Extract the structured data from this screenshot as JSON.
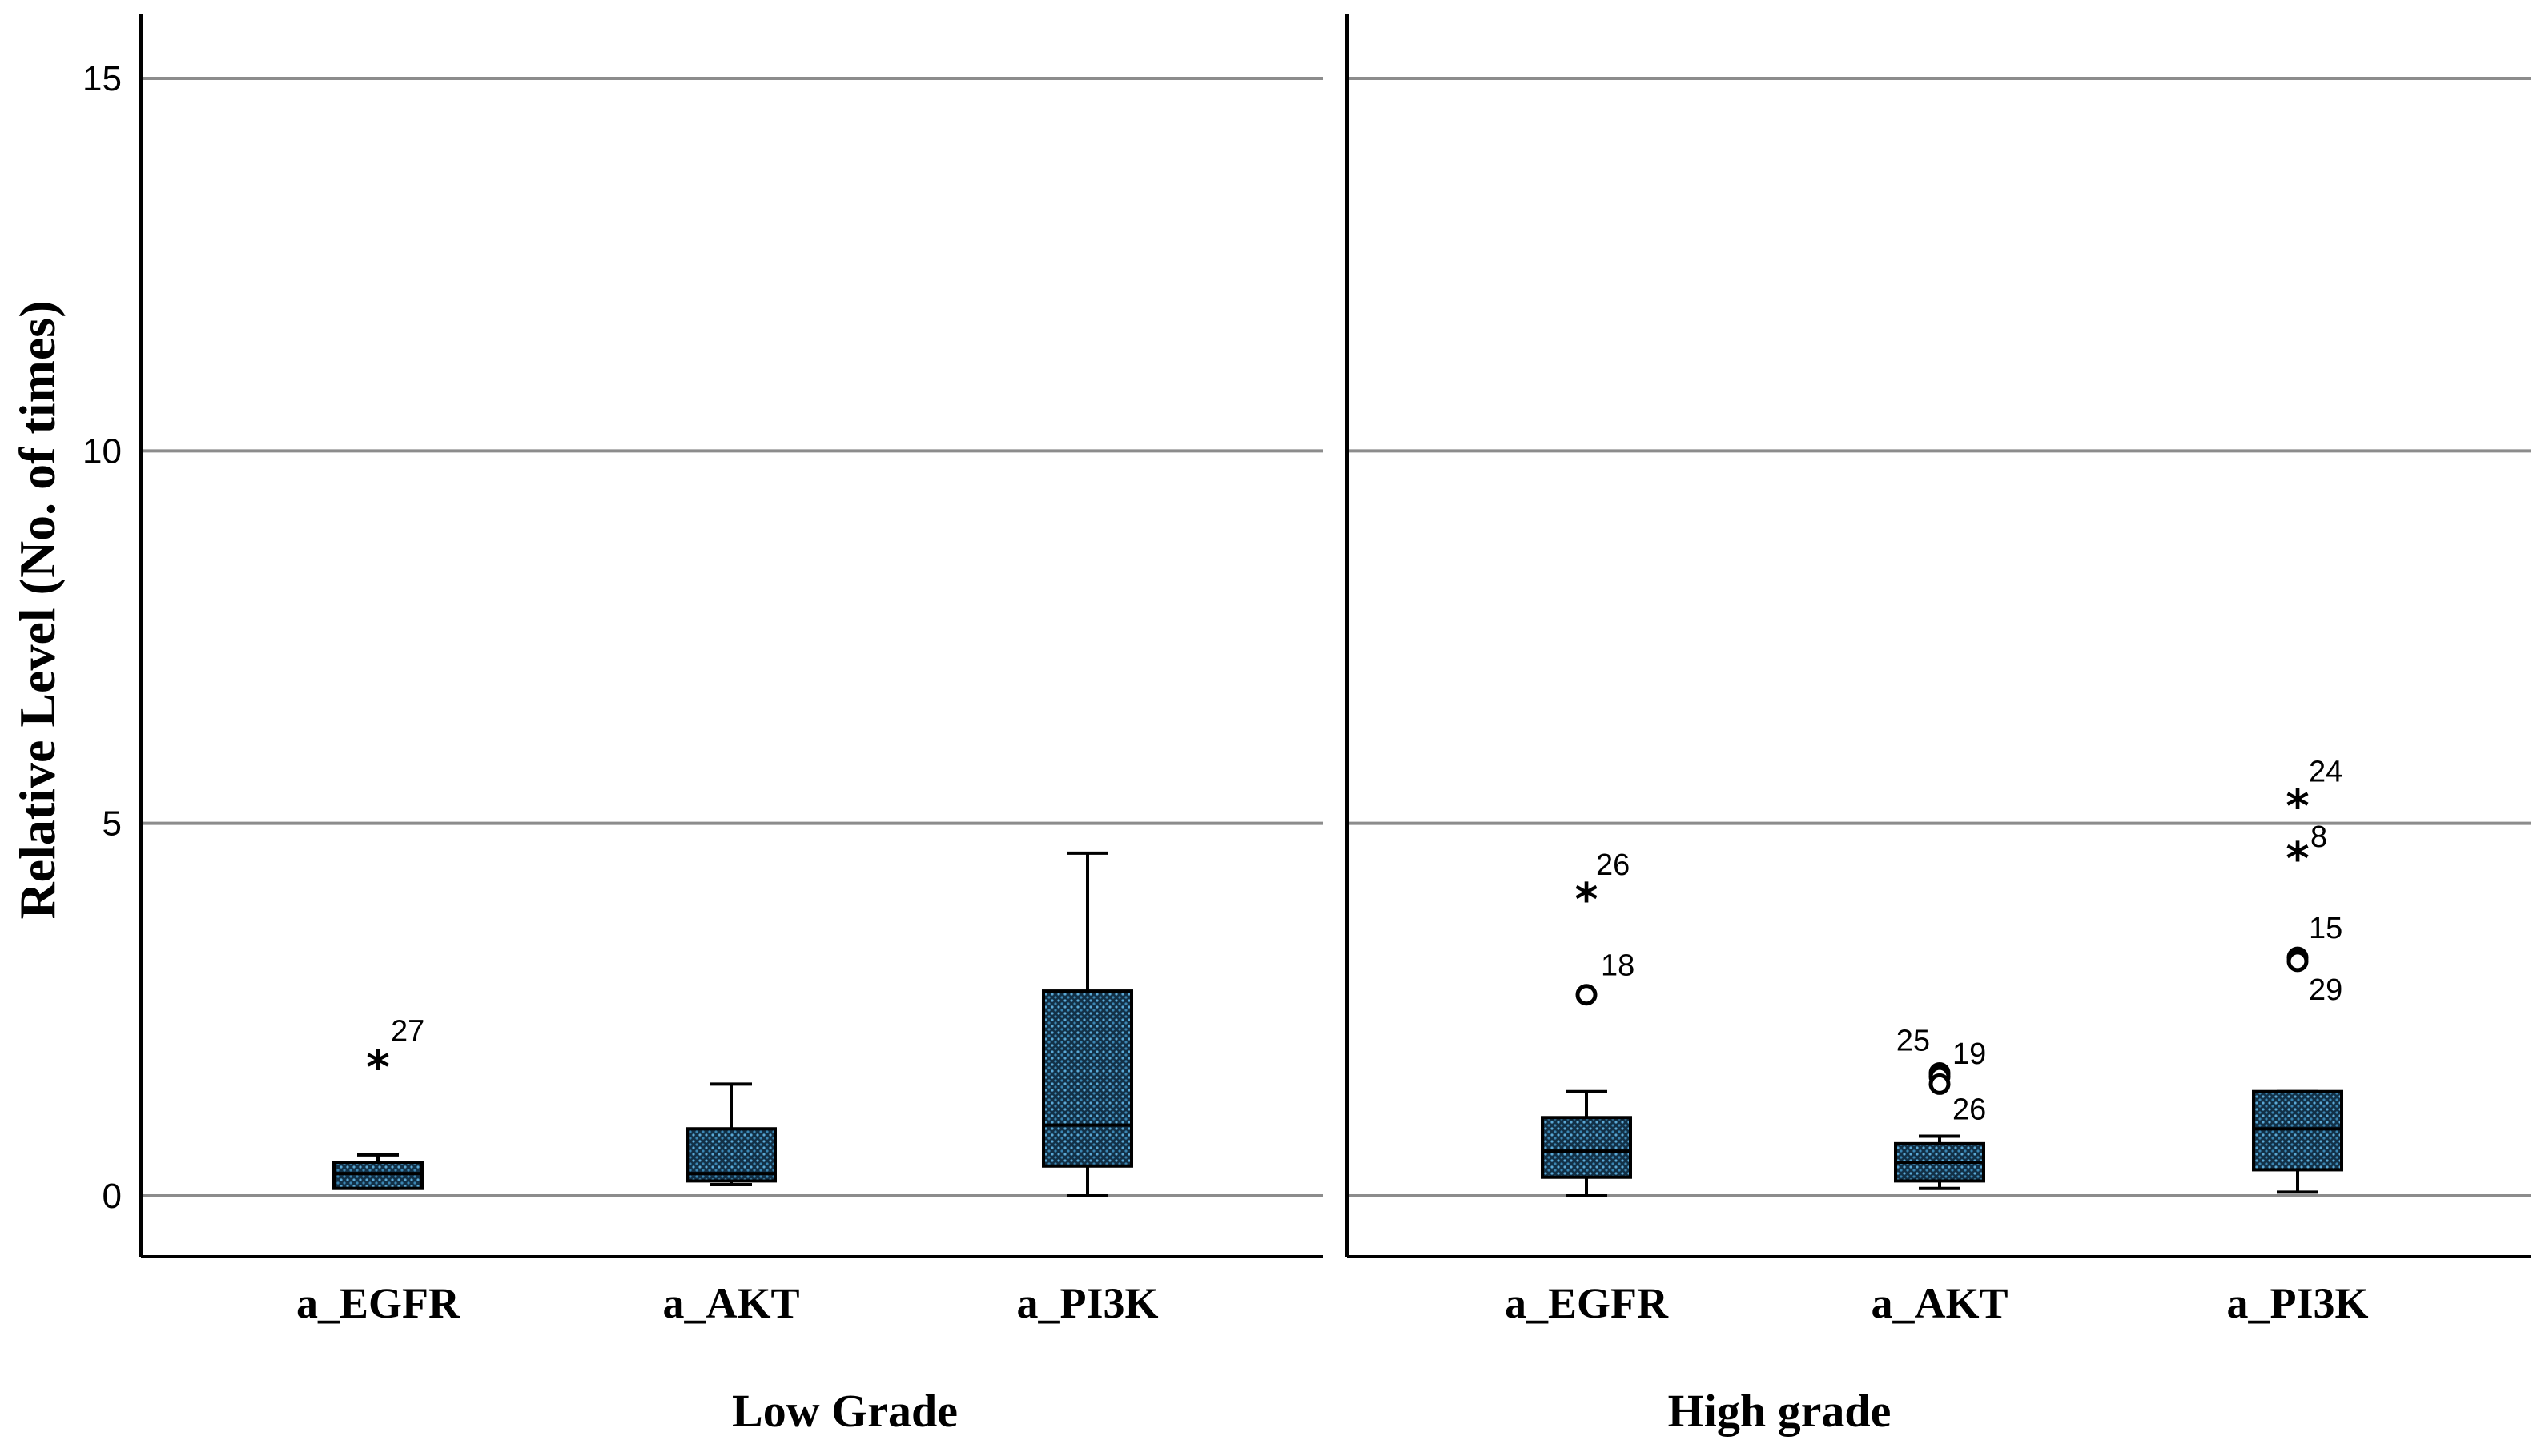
{
  "chart_data": {
    "type": "boxplot",
    "ylabel": "Relative Level  (No. of times)",
    "ylim": [
      -0.8,
      15.8
    ],
    "yticks": [
      0,
      5,
      10,
      15
    ],
    "ytick_labels": [
      "0",
      "5",
      "10",
      "15"
    ],
    "grid": true,
    "box_color": "#2f6f8f",
    "panels": [
      {
        "title": "Low Grade",
        "categories": [
          "a_EGFR",
          "a_AKT",
          "a_PI3K"
        ],
        "boxes": [
          {
            "min": 0.1,
            "q1": 0.1,
            "median": 0.3,
            "q3": 0.45,
            "max": 0.55,
            "outliers": [
              {
                "value": 1.8,
                "label": "27",
                "type": "extreme"
              }
            ]
          },
          {
            "min": 0.15,
            "q1": 0.2,
            "median": 0.3,
            "q3": 0.9,
            "max": 1.5,
            "outliers": []
          },
          {
            "min": 0.0,
            "q1": 0.4,
            "median": 0.95,
            "q3": 2.75,
            "max": 4.6,
            "outliers": []
          }
        ]
      },
      {
        "title": "High grade",
        "categories": [
          "a_EGFR",
          "a_AKT",
          "a_PI3K"
        ],
        "boxes": [
          {
            "min": 0.0,
            "q1": 0.25,
            "median": 0.6,
            "q3": 1.05,
            "max": 1.4,
            "outliers": [
              {
                "value": 4.05,
                "label": "26",
                "type": "extreme"
              },
              {
                "value": 2.7,
                "label": "18",
                "type": "outlier"
              }
            ]
          },
          {
            "min": 0.1,
            "q1": 0.2,
            "median": 0.45,
            "q3": 0.7,
            "max": 0.8,
            "outliers": [
              {
                "value": 1.65,
                "label": "25",
                "type": "outlier"
              },
              {
                "value": 1.6,
                "label": "19",
                "type": "outlier"
              },
              {
                "value": 1.5,
                "label": "26",
                "type": "outlier"
              }
            ]
          },
          {
            "min": 0.05,
            "q1": 0.35,
            "median": 0.9,
            "q3": 1.4,
            "max": 1.4,
            "outliers": [
              {
                "value": 5.3,
                "label": "24",
                "type": "extreme"
              },
              {
                "value": 4.6,
                "label": "8",
                "type": "extreme"
              },
              {
                "value": 3.2,
                "label": "15",
                "type": "outlier"
              },
              {
                "value": 3.15,
                "label": "29",
                "type": "outlier"
              }
            ]
          }
        ]
      }
    ]
  }
}
